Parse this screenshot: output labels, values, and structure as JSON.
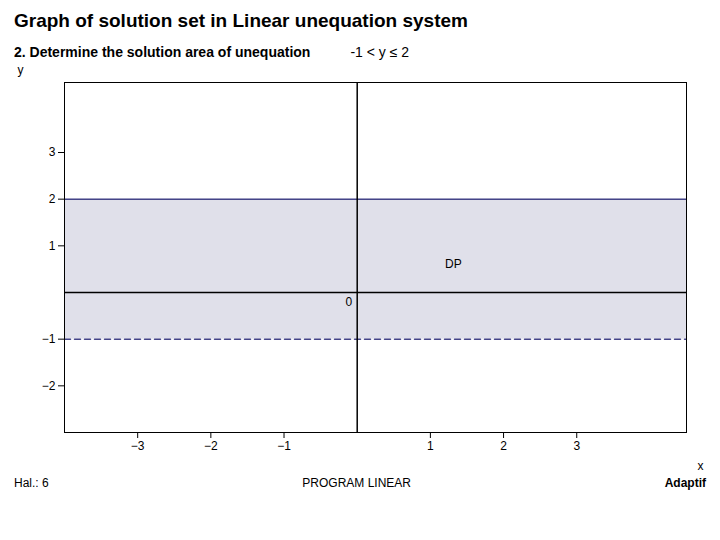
{
  "chart_data": {
    "type": "area",
    "title": "Graph of solution set in Linear unequation system",
    "subtitle": "2. Determine the solution area of unequation",
    "equation": "-1 < y ≤ 2",
    "footer": [
      "Hal.: 6",
      "PROGRAM LINEAR",
      "Adaptif"
    ],
    "xlabel": "x",
    "ylabel": "y",
    "x": [
      -4.0,
      4.5
    ],
    "series": [
      {
        "type": "area",
        "low": [
          -1,
          -1
        ],
        "high": [
          2,
          2
        ],
        "color": "#9999bb"
      },
      {
        "type": "line",
        "values": [
          2,
          2
        ],
        "color": "#444488",
        "line_style": "solid"
      },
      {
        "type": "line",
        "values": [
          -1,
          -1
        ],
        "color": "#444488",
        "line_style": "dashed"
      }
    ],
    "annotations": [
      {
        "text": "DP",
        "x": 1.2,
        "y": 0.6
      },
      {
        "text": "0",
        "x": 0,
        "y": 0
      }
    ],
    "xlim": [
      -4.0,
      4.5
    ],
    "ylim": [
      -3.0,
      4.5
    ],
    "xticks": [
      -3,
      -2,
      -1,
      1,
      2,
      3
    ],
    "yticks": [
      -2,
      -1,
      1,
      2,
      3
    ],
    "grid": false
  }
}
